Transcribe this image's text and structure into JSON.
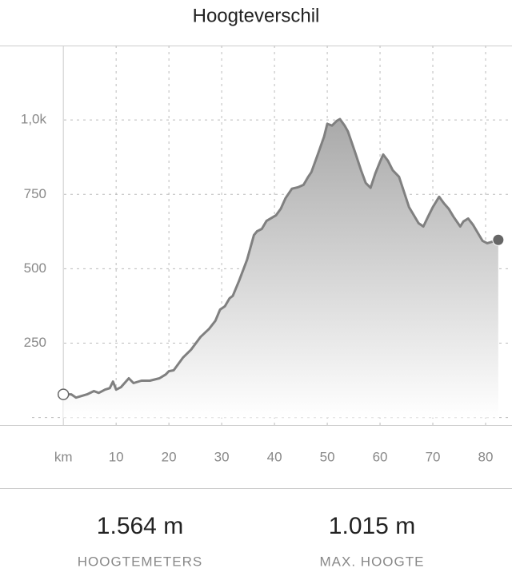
{
  "chart_data": {
    "type": "area",
    "title": "Hoogteverschil",
    "x": [
      0,
      1.5,
      2.4,
      4.5,
      5.8,
      6.7,
      7.9,
      8.8,
      9.4,
      10,
      10.9,
      12.4,
      13.3,
      14.8,
      16.4,
      18.2,
      19.4,
      20,
      20.9,
      22.7,
      24.2,
      26,
      27.6,
      28.8,
      29.7,
      30.6,
      31.5,
      32.1,
      33.3,
      34.8,
      36.1,
      36.7,
      37.6,
      38.5,
      40.3,
      41.2,
      42.1,
      43.3,
      44.5,
      45.5,
      46.4,
      47,
      48.2,
      49.4,
      50,
      50.9,
      51.8,
      52.4,
      53.3,
      53.9,
      55.2,
      56.4,
      57.3,
      58.2,
      59.1,
      60,
      60.6,
      61.5,
      62.4,
      63.6,
      64.5,
      65.5,
      66.4,
      67.3,
      68.2,
      69.1,
      70,
      71.2,
      72.1,
      73,
      73.9,
      75.2,
      75.8,
      76.7,
      77.6,
      78.5,
      79.4,
      80.3,
      80.9,
      82.4
    ],
    "values": [
      78,
      78,
      67,
      78,
      89,
      83,
      94,
      99,
      121,
      94,
      102,
      132,
      116,
      124,
      124,
      132,
      145,
      156,
      159,
      202,
      228,
      271,
      298,
      325,
      363,
      374,
      401,
      409,
      460,
      530,
      613,
      626,
      634,
      661,
      680,
      702,
      737,
      769,
      774,
      782,
      809,
      825,
      884,
      944,
      987,
      981,
      997,
      1003,
      981,
      962,
      895,
      831,
      788,
      772,
      820,
      860,
      884,
      863,
      831,
      809,
      761,
      707,
      680,
      653,
      642,
      675,
      707,
      742,
      720,
      702,
      675,
      642,
      659,
      669,
      648,
      621,
      594,
      586,
      589,
      597
    ],
    "color": "#808080",
    "xlim": [
      -12,
      85
    ],
    "ylim": [
      -25,
      1250
    ],
    "xticks": [
      {
        "value": 0,
        "label": "km"
      },
      10,
      20,
      30,
      40,
      50,
      60,
      70,
      80
    ],
    "yticks": [
      250,
      500,
      750,
      {
        "value": 1000,
        "label": "1,0k"
      }
    ],
    "grid": true
  },
  "stats": [
    {
      "value": "1.564 m",
      "label": "HOOGTEMETERS"
    },
    {
      "value": "1.015 m",
      "label": "MAX. HOOGTE"
    }
  ]
}
